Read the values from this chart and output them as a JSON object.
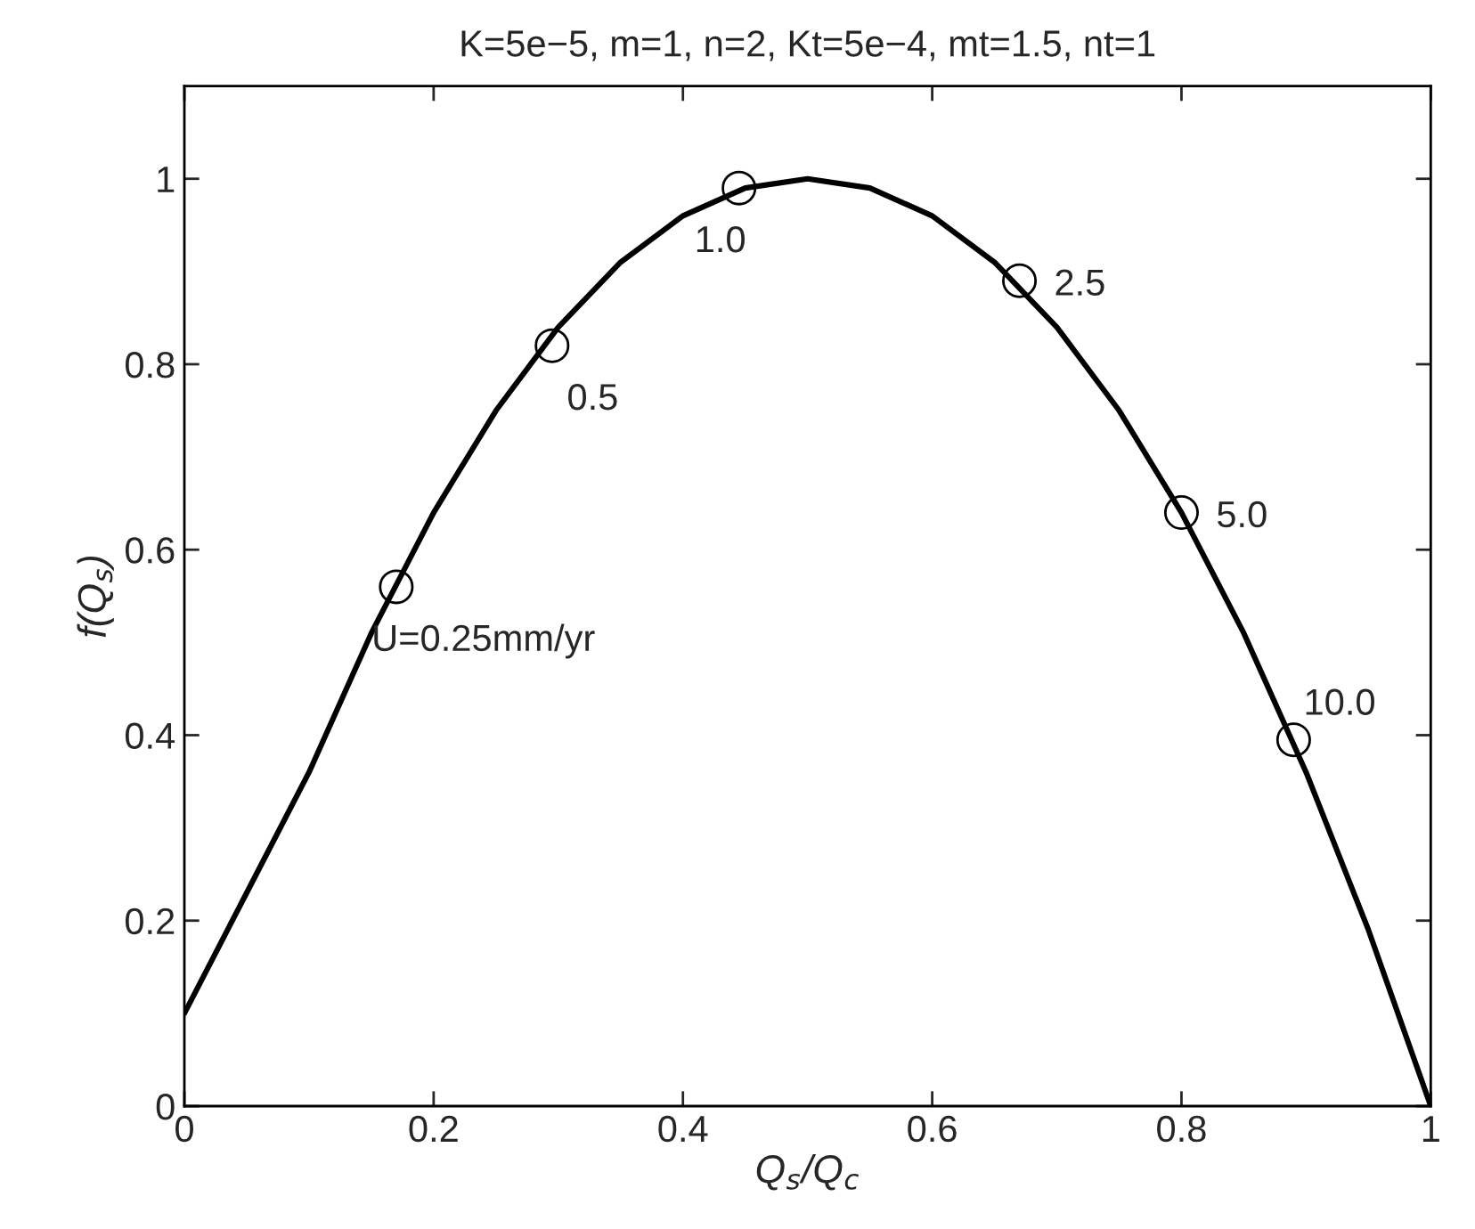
{
  "chart_data": {
    "type": "line",
    "title": "K=5e−5, m=1, n=2, Kt=5e−4, mt=1.5, nt=1",
    "xlabel": "Q$_{s}$/Q$_{c}$",
    "ylabel": "f(Q$_{s}$)",
    "xlim": [
      0,
      1
    ],
    "ylim": [
      0,
      1.1
    ],
    "xticks": [
      0,
      0.2,
      0.4,
      0.6,
      0.8,
      1
    ],
    "yticks": [
      0,
      0.2,
      0.4,
      0.6,
      0.8,
      1
    ],
    "grid": false,
    "legend": false,
    "series": [
      {
        "color": "#000000",
        "marker": "none",
        "x": [
          0,
          0.05,
          0.1,
          0.15,
          0.2,
          0.25,
          0.3,
          0.35,
          0.4,
          0.45,
          0.5,
          0.55,
          0.6,
          0.65,
          0.7,
          0.75,
          0.8,
          0.85,
          0.9,
          0.95,
          1
        ],
        "values": [
          0.1,
          0.23,
          0.36,
          0.51,
          0.64,
          0.75,
          0.84,
          0.91,
          0.96,
          0.99,
          1.0,
          0.99,
          0.96,
          0.91,
          0.84,
          0.75,
          0.64,
          0.51,
          0.36,
          0.19,
          0
        ]
      },
      {
        "type": "scatter",
        "color": "#000000",
        "marker": "circle",
        "x": [
          0.17,
          0.295,
          0.445,
          0.67,
          0.8,
          0.89
        ],
        "values": [
          0.56,
          0.82,
          0.99,
          0.89,
          0.64,
          0.395
        ]
      }
    ],
    "annotations": [
      {
        "text": "U=0.25mm/yr",
        "x": 0.17,
        "y": 0.56
      },
      {
        "text": "0.5",
        "x": 0.295,
        "y": 0.82
      },
      {
        "text": "1.0",
        "x": 0.445,
        "y": 0.99
      },
      {
        "text": "2.5",
        "x": 0.67,
        "y": 0.89
      },
      {
        "text": "5.0",
        "x": 0.8,
        "y": 0.64
      },
      {
        "text": "10.0",
        "x": 0.89,
        "y": 0.395
      }
    ]
  }
}
